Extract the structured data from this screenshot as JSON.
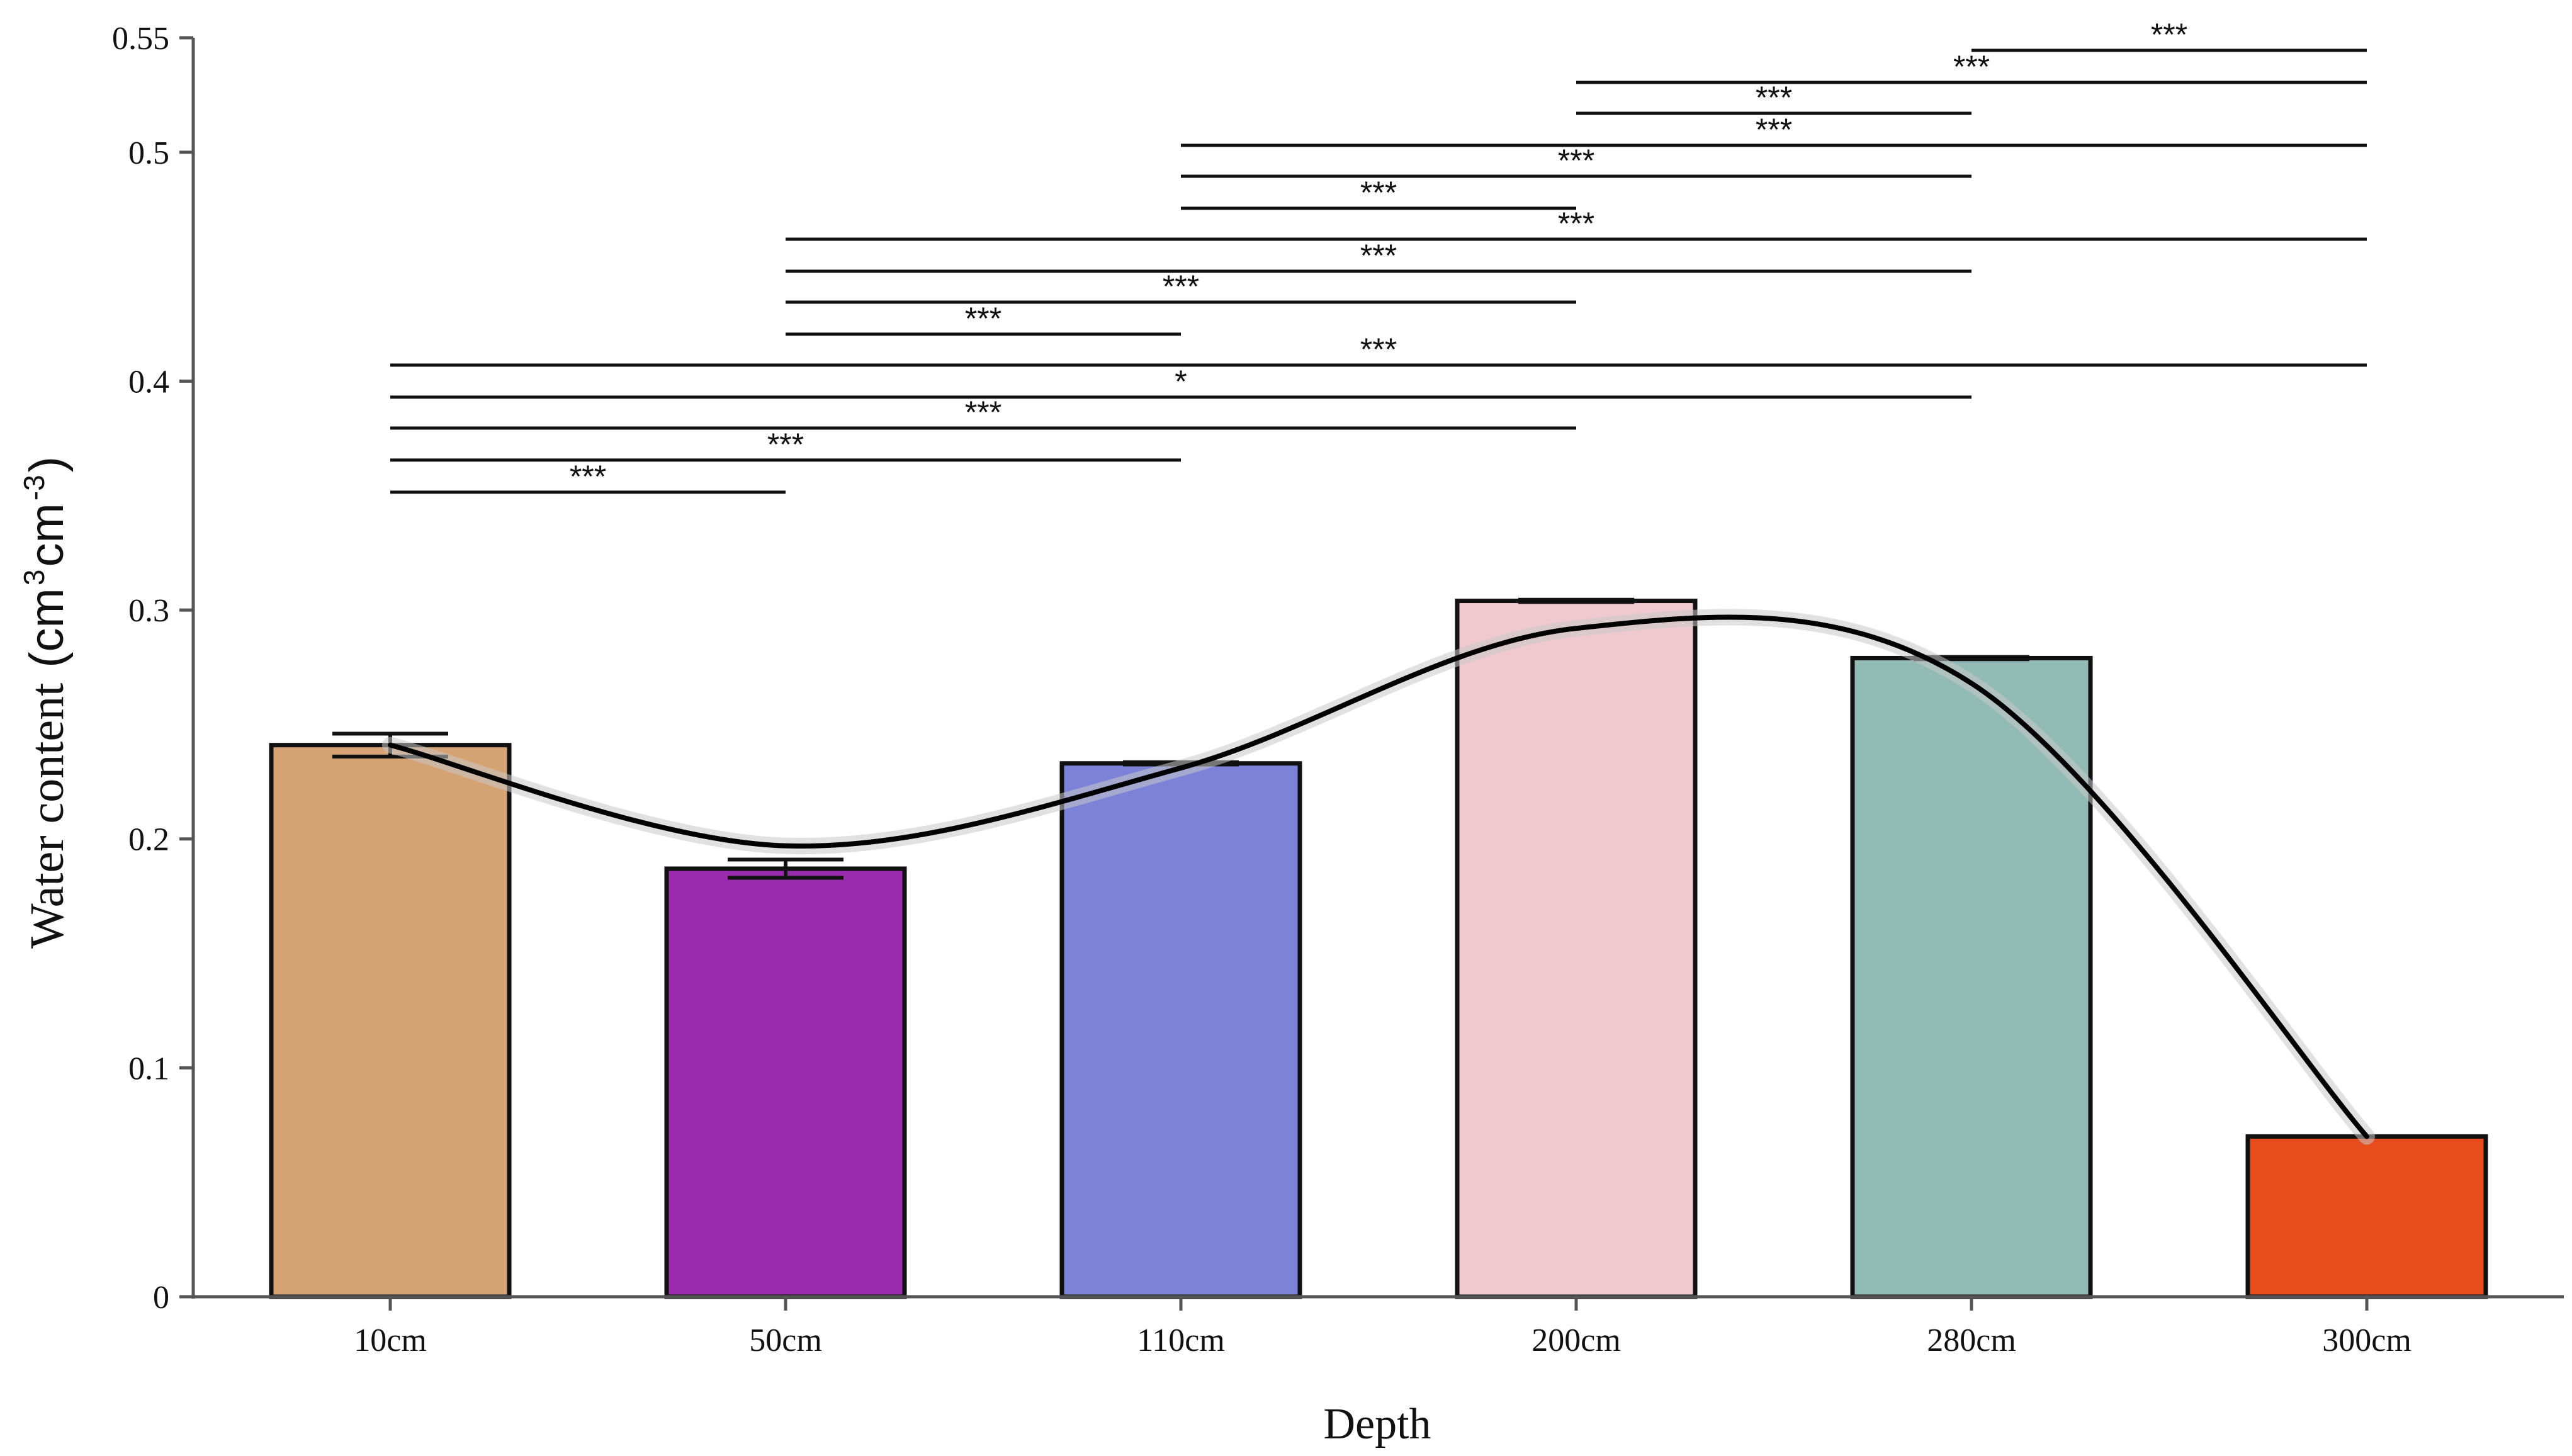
{
  "chart_data": {
    "type": "bar",
    "xlabel": "Depth",
    "ylabel": {
      "main": "Water content",
      "unit_open": "(cm",
      "sup1": "3",
      "unit_mid": "cm",
      "sup2": "-3",
      "unit_close": ")"
    },
    "categories": [
      "10cm",
      "50cm",
      "110cm",
      "200cm",
      "280cm",
      "300cm"
    ],
    "values": [
      0.241,
      0.187,
      0.233,
      0.304,
      0.279,
      0.07
    ],
    "error": [
      0.005,
      0.004,
      0.0005,
      0.0005,
      0.0005,
      0
    ],
    "colors": [
      "#D5A274",
      "#9B2BAE",
      "#7B82D7",
      "#F0C9CF",
      "#93BBB5",
      "#E64C1C"
    ],
    "ylim": [
      0,
      0.55
    ],
    "yticks": [
      0,
      0.1,
      0.2,
      0.3,
      0.4,
      0.5,
      0.55
    ],
    "ytick_labels": [
      "0",
      "0.1",
      "0.2",
      "0.3",
      "0.4",
      "0.5",
      "0.55"
    ],
    "trend_line": {
      "type": "smooth",
      "x_categories": [
        "10cm",
        "50cm",
        "110cm",
        "200cm",
        "280cm",
        "300cm"
      ],
      "points": [
        {
          "x": "10cm",
          "y": 0.241
        },
        {
          "x": "50cm",
          "y": 0.197
        },
        {
          "x": "110cm",
          "y": 0.231
        },
        {
          "x": "200cm",
          "y": 0.292
        },
        {
          "x": "280cm",
          "y": 0.268
        },
        {
          "x": "300cm",
          "y": 0.07
        }
      ],
      "color": "#000000"
    },
    "significance": [
      {
        "from": "10cm",
        "to": "50cm",
        "y": 0.3515,
        "label": "***"
      },
      {
        "from": "10cm",
        "to": "110cm",
        "y": 0.3655,
        "label": "***"
      },
      {
        "from": "10cm",
        "to": "200cm",
        "y": 0.3795,
        "label": "***"
      },
      {
        "from": "10cm",
        "to": "280cm",
        "y": 0.393,
        "label": "*"
      },
      {
        "from": "10cm",
        "to": "300cm",
        "y": 0.407,
        "label": "***"
      },
      {
        "from": "50cm",
        "to": "110cm",
        "y": 0.4205,
        "label": "***"
      },
      {
        "from": "50cm",
        "to": "200cm",
        "y": 0.4345,
        "label": "***"
      },
      {
        "from": "50cm",
        "to": "280cm",
        "y": 0.448,
        "label": "***"
      },
      {
        "from": "50cm",
        "to": "300cm",
        "y": 0.462,
        "label": "***"
      },
      {
        "from": "110cm",
        "to": "200cm",
        "y": 0.4755,
        "label": "***"
      },
      {
        "from": "110cm",
        "to": "280cm",
        "y": 0.4895,
        "label": "***"
      },
      {
        "from": "110cm",
        "to": "300cm",
        "y": 0.503,
        "label": "***"
      },
      {
        "from": "200cm",
        "to": "280cm",
        "y": 0.517,
        "label": "***"
      },
      {
        "from": "200cm",
        "to": "300cm",
        "y": 0.5305,
        "label": "***"
      },
      {
        "from": "280cm",
        "to": "300cm",
        "y": 0.5445,
        "label": "***"
      }
    ],
    "grid": false,
    "legend": "none"
  }
}
